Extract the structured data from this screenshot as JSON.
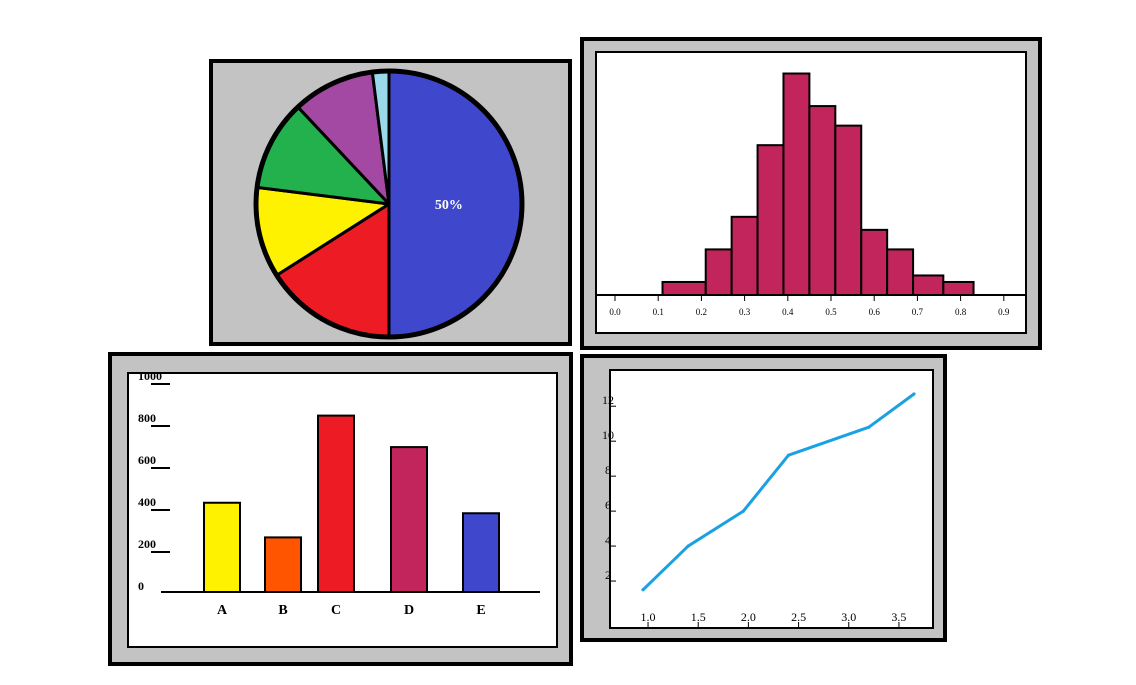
{
  "chart_data": [
    {
      "type": "pie",
      "slices": [
        {
          "value": 50,
          "color": "#3f48cc",
          "label": "50%"
        },
        {
          "value": 16,
          "color": "#ed1c24",
          "label": ""
        },
        {
          "value": 11,
          "color": "#fff200",
          "label": ""
        },
        {
          "value": 11,
          "color": "#22b14c",
          "label": ""
        },
        {
          "value": 10,
          "color": "#a349a4",
          "label": ""
        },
        {
          "value": 2,
          "color": "#99d9ea",
          "label": ""
        }
      ]
    },
    {
      "type": "bar",
      "subtype": "histogram",
      "bar_color": "#c2255c",
      "x_ticks": [
        "0.0",
        "0.1",
        "0.2",
        "0.3",
        "0.4",
        "0.5",
        "0.6",
        "0.7",
        "0.8",
        "0.9"
      ],
      "bins": [
        {
          "x0": 0.11,
          "x1": 0.21,
          "count": 2
        },
        {
          "x0": 0.21,
          "x1": 0.27,
          "count": 7
        },
        {
          "x0": 0.27,
          "x1": 0.33,
          "count": 12
        },
        {
          "x0": 0.33,
          "x1": 0.39,
          "count": 23
        },
        {
          "x0": 0.39,
          "x1": 0.45,
          "count": 34
        },
        {
          "x0": 0.45,
          "x1": 0.51,
          "count": 29
        },
        {
          "x0": 0.51,
          "x1": 0.57,
          "count": 26
        },
        {
          "x0": 0.57,
          "x1": 0.63,
          "count": 10
        },
        {
          "x0": 0.63,
          "x1": 0.69,
          "count": 7
        },
        {
          "x0": 0.69,
          "x1": 0.76,
          "count": 3
        },
        {
          "x0": 0.76,
          "x1": 0.83,
          "count": 2
        }
      ],
      "ylim": [
        0,
        35
      ]
    },
    {
      "type": "bar",
      "categories": [
        "A",
        "B",
        "C",
        "D",
        "E"
      ],
      "values": [
        425,
        260,
        840,
        690,
        375
      ],
      "colors": [
        "#fff200",
        "#ff5500",
        "#ed1c24",
        "#c2255c",
        "#3f48cc"
      ],
      "y_ticks": [
        "0",
        "200",
        "400",
        "600",
        "800",
        "1000"
      ],
      "ylim": [
        0,
        1000
      ]
    },
    {
      "type": "line",
      "x": [
        0.95,
        1.4,
        1.95,
        2.4,
        3.2,
        3.65
      ],
      "y": [
        1.5,
        4.0,
        6.0,
        9.2,
        10.8,
        12.7
      ],
      "color": "#1ba1e2",
      "x_ticks": [
        "1.0",
        "1.5",
        "2.0",
        "2.5",
        "3.0",
        "3.5"
      ],
      "y_ticks": [
        "2",
        "4",
        "6",
        "8",
        "10",
        "12"
      ],
      "xlim": [
        0.9,
        3.7
      ],
      "ylim": [
        0,
        13.5
      ]
    }
  ]
}
